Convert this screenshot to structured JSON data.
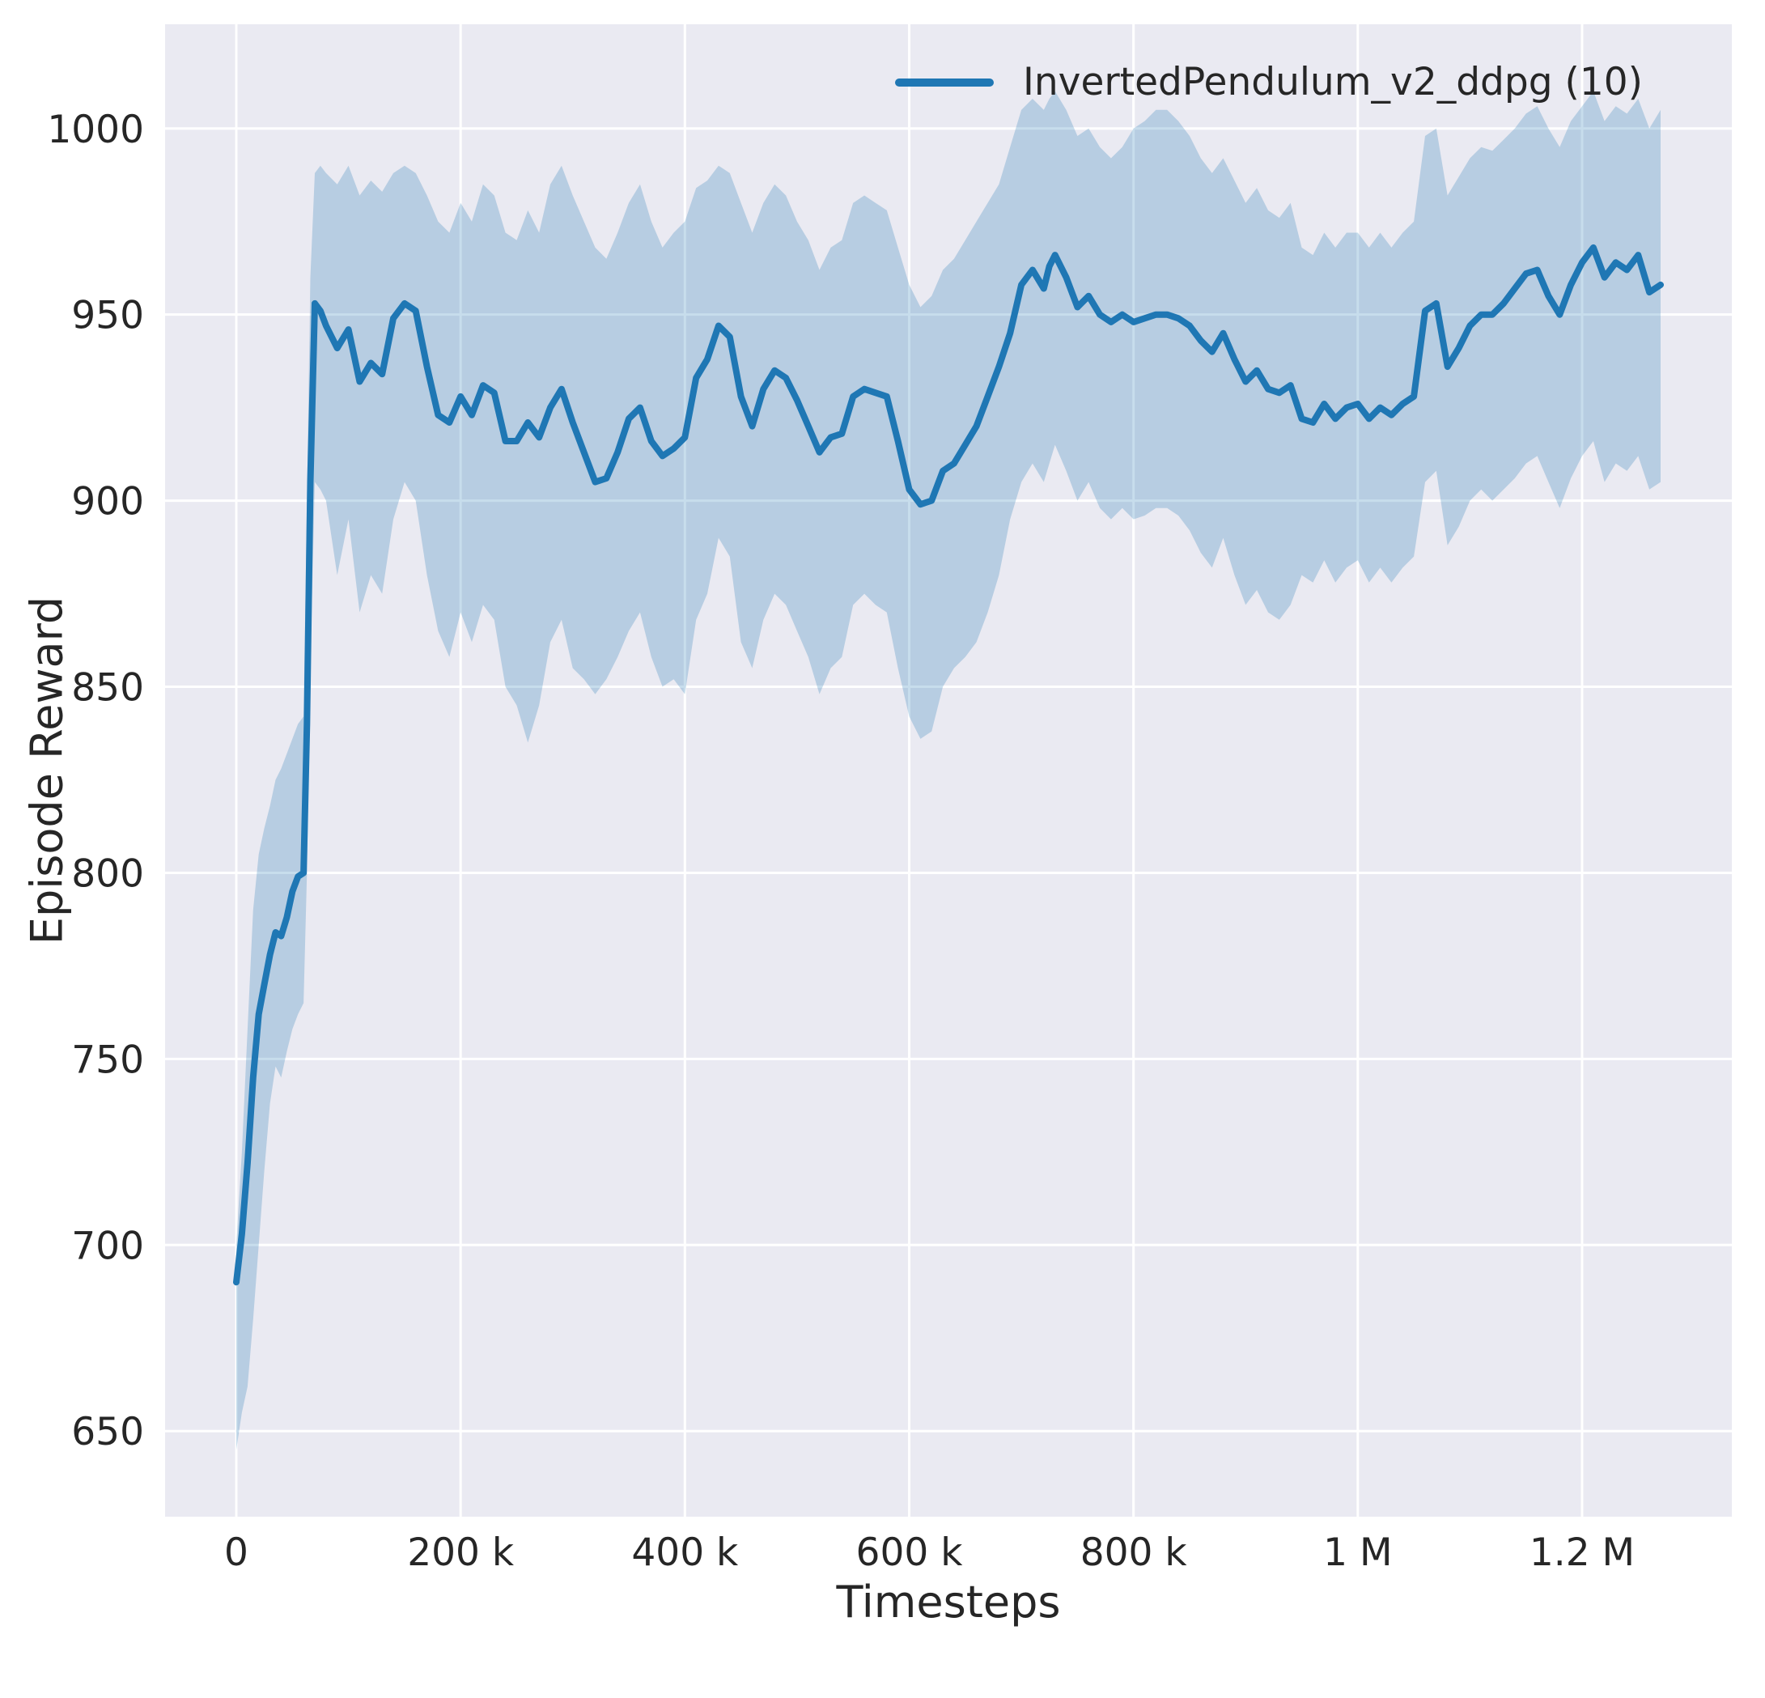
{
  "chart_data": {
    "type": "line",
    "title": "",
    "xlabel": "Timesteps",
    "ylabel": "Episode Reward",
    "legend": [
      "InvertedPendulum_v2_ddpg (10)"
    ],
    "legend_position": "upper right",
    "grid": true,
    "x_unit": "thousands of timesteps",
    "xlim": [
      -63.5,
      1333.5
    ],
    "ylim": [
      627,
      1028
    ],
    "xticks": [
      0,
      200,
      400,
      600,
      800,
      1000,
      1200
    ],
    "xtick_labels": [
      "0",
      "200 k",
      "400 k",
      "600 k",
      "800 k",
      "1 M",
      "1.2 M"
    ],
    "yticks": [
      650,
      700,
      750,
      800,
      850,
      900,
      950,
      1000
    ],
    "ytick_labels": [
      "650",
      "700",
      "750",
      "800",
      "850",
      "900",
      "950",
      "1000"
    ],
    "colors": {
      "line": "#1f77b4",
      "band_opacity": 0.25,
      "axes_bg": "#eaeaf2",
      "grid": "#ffffff",
      "text": "#262626",
      "figure_bg": "#ffffff"
    },
    "x": [
      0,
      5,
      10,
      15,
      20,
      25,
      30,
      35,
      40,
      45,
      50,
      55,
      60,
      63,
      66,
      70,
      75,
      80,
      90,
      100,
      110,
      120,
      130,
      140,
      150,
      160,
      170,
      180,
      190,
      200,
      210,
      220,
      230,
      240,
      250,
      260,
      270,
      280,
      290,
      300,
      310,
      320,
      330,
      340,
      350,
      360,
      370,
      380,
      390,
      400,
      410,
      420,
      430,
      440,
      450,
      460,
      470,
      480,
      490,
      500,
      510,
      520,
      530,
      540,
      550,
      560,
      570,
      580,
      590,
      600,
      610,
      620,
      630,
      640,
      650,
      660,
      670,
      680,
      690,
      700,
      710,
      720,
      725,
      730,
      740,
      750,
      760,
      770,
      780,
      790,
      800,
      810,
      820,
      830,
      840,
      850,
      860,
      870,
      880,
      890,
      900,
      910,
      920,
      930,
      940,
      950,
      960,
      970,
      980,
      990,
      1000,
      1010,
      1020,
      1030,
      1040,
      1050,
      1060,
      1070,
      1080,
      1090,
      1100,
      1110,
      1120,
      1130,
      1140,
      1150,
      1160,
      1170,
      1180,
      1190,
      1200,
      1210,
      1220,
      1230,
      1240,
      1250,
      1260,
      1270
    ],
    "mean": [
      690,
      703,
      722,
      745,
      762,
      770,
      778,
      784,
      783,
      788,
      795,
      799,
      800,
      840,
      905,
      953,
      951,
      947,
      941,
      946,
      932,
      937,
      934,
      949,
      953,
      951,
      936,
      923,
      921,
      928,
      923,
      931,
      929,
      916,
      916,
      921,
      917,
      925,
      930,
      921,
      913,
      905,
      906,
      913,
      922,
      925,
      916,
      912,
      914,
      917,
      933,
      938,
      947,
      944,
      928,
      920,
      930,
      935,
      933,
      927,
      920,
      913,
      917,
      918,
      928,
      930,
      929,
      928,
      916,
      903,
      899,
      900,
      908,
      910,
      915,
      920,
      928,
      936,
      945,
      958,
      962,
      957,
      963,
      966,
      960,
      952,
      955,
      950,
      948,
      950,
      948,
      949,
      950,
      950,
      949,
      947,
      943,
      940,
      945,
      938,
      932,
      935,
      930,
      929,
      931,
      922,
      921,
      926,
      922,
      925,
      926,
      922,
      925,
      923,
      926,
      928,
      951,
      953,
      936,
      941,
      947,
      950,
      950,
      953,
      957,
      961,
      962,
      955,
      950,
      958,
      964,
      968,
      960,
      964,
      962,
      966,
      956,
      958
    ],
    "lower": [
      645,
      655,
      662,
      680,
      700,
      720,
      738,
      748,
      745,
      752,
      758,
      762,
      765,
      800,
      855,
      905,
      903,
      900,
      880,
      895,
      870,
      880,
      875,
      895,
      905,
      900,
      880,
      865,
      858,
      870,
      862,
      872,
      868,
      850,
      845,
      835,
      845,
      862,
      868,
      855,
      852,
      848,
      852,
      858,
      865,
      870,
      858,
      850,
      852,
      848,
      868,
      875,
      890,
      885,
      862,
      855,
      868,
      875,
      872,
      865,
      858,
      848,
      855,
      858,
      872,
      875,
      872,
      870,
      855,
      842,
      836,
      838,
      850,
      855,
      858,
      862,
      870,
      880,
      895,
      905,
      910,
      905,
      910,
      915,
      908,
      900,
      905,
      898,
      895,
      898,
      895,
      896,
      898,
      898,
      896,
      892,
      886,
      882,
      890,
      880,
      872,
      876,
      870,
      868,
      872,
      880,
      878,
      884,
      878,
      882,
      884,
      878,
      882,
      878,
      882,
      885,
      905,
      908,
      888,
      893,
      900,
      903,
      900,
      903,
      906,
      910,
      912,
      905,
      898,
      906,
      912,
      916,
      905,
      910,
      908,
      912,
      903,
      905
    ],
    "upper": [
      700,
      725,
      758,
      790,
      805,
      812,
      818,
      825,
      828,
      832,
      836,
      840,
      842,
      900,
      960,
      988,
      990,
      988,
      985,
      990,
      982,
      986,
      983,
      988,
      990,
      988,
      982,
      975,
      972,
      980,
      975,
      985,
      982,
      972,
      970,
      978,
      972,
      985,
      990,
      982,
      975,
      968,
      965,
      972,
      980,
      985,
      975,
      968,
      972,
      975,
      984,
      986,
      990,
      988,
      980,
      972,
      980,
      985,
      982,
      975,
      970,
      962,
      968,
      970,
      980,
      982,
      980,
      978,
      968,
      958,
      952,
      955,
      962,
      965,
      970,
      975,
      980,
      985,
      995,
      1005,
      1008,
      1005,
      1008,
      1010,
      1005,
      998,
      1000,
      995,
      992,
      995,
      1000,
      1002,
      1005,
      1005,
      1002,
      998,
      992,
      988,
      992,
      986,
      980,
      984,
      978,
      976,
      980,
      968,
      966,
      972,
      968,
      972,
      972,
      968,
      972,
      968,
      972,
      975,
      998,
      1000,
      982,
      987,
      992,
      995,
      994,
      997,
      1000,
      1004,
      1006,
      1000,
      995,
      1002,
      1006,
      1010,
      1002,
      1006,
      1004,
      1008,
      1000,
      1005
    ]
  }
}
